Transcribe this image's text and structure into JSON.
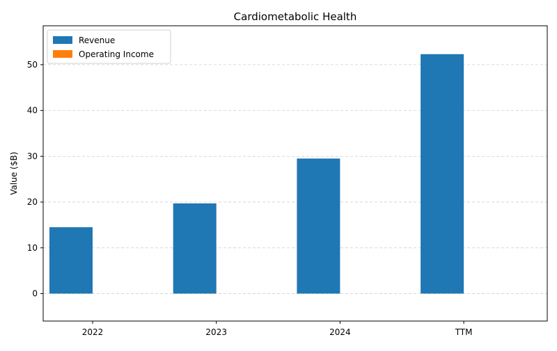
{
  "chart_data": {
    "type": "bar",
    "title": "Cardiometabolic Health",
    "xlabel": "",
    "ylabel": "Value ($B)",
    "categories": [
      "2022",
      "2023",
      "2024",
      "TTM"
    ],
    "series": [
      {
        "name": "Revenue",
        "color": "#1f77b4",
        "values": [
          14.5,
          19.7,
          29.5,
          52.3
        ]
      },
      {
        "name": "Operating Income",
        "color": "#ff7f0e",
        "values": [
          0,
          0,
          0,
          0
        ]
      }
    ],
    "ylim": [
      -6,
      58.5
    ],
    "yticks": [
      0,
      10,
      20,
      30,
      40,
      50
    ],
    "grid": "y-dashed",
    "legend": "top-left"
  }
}
